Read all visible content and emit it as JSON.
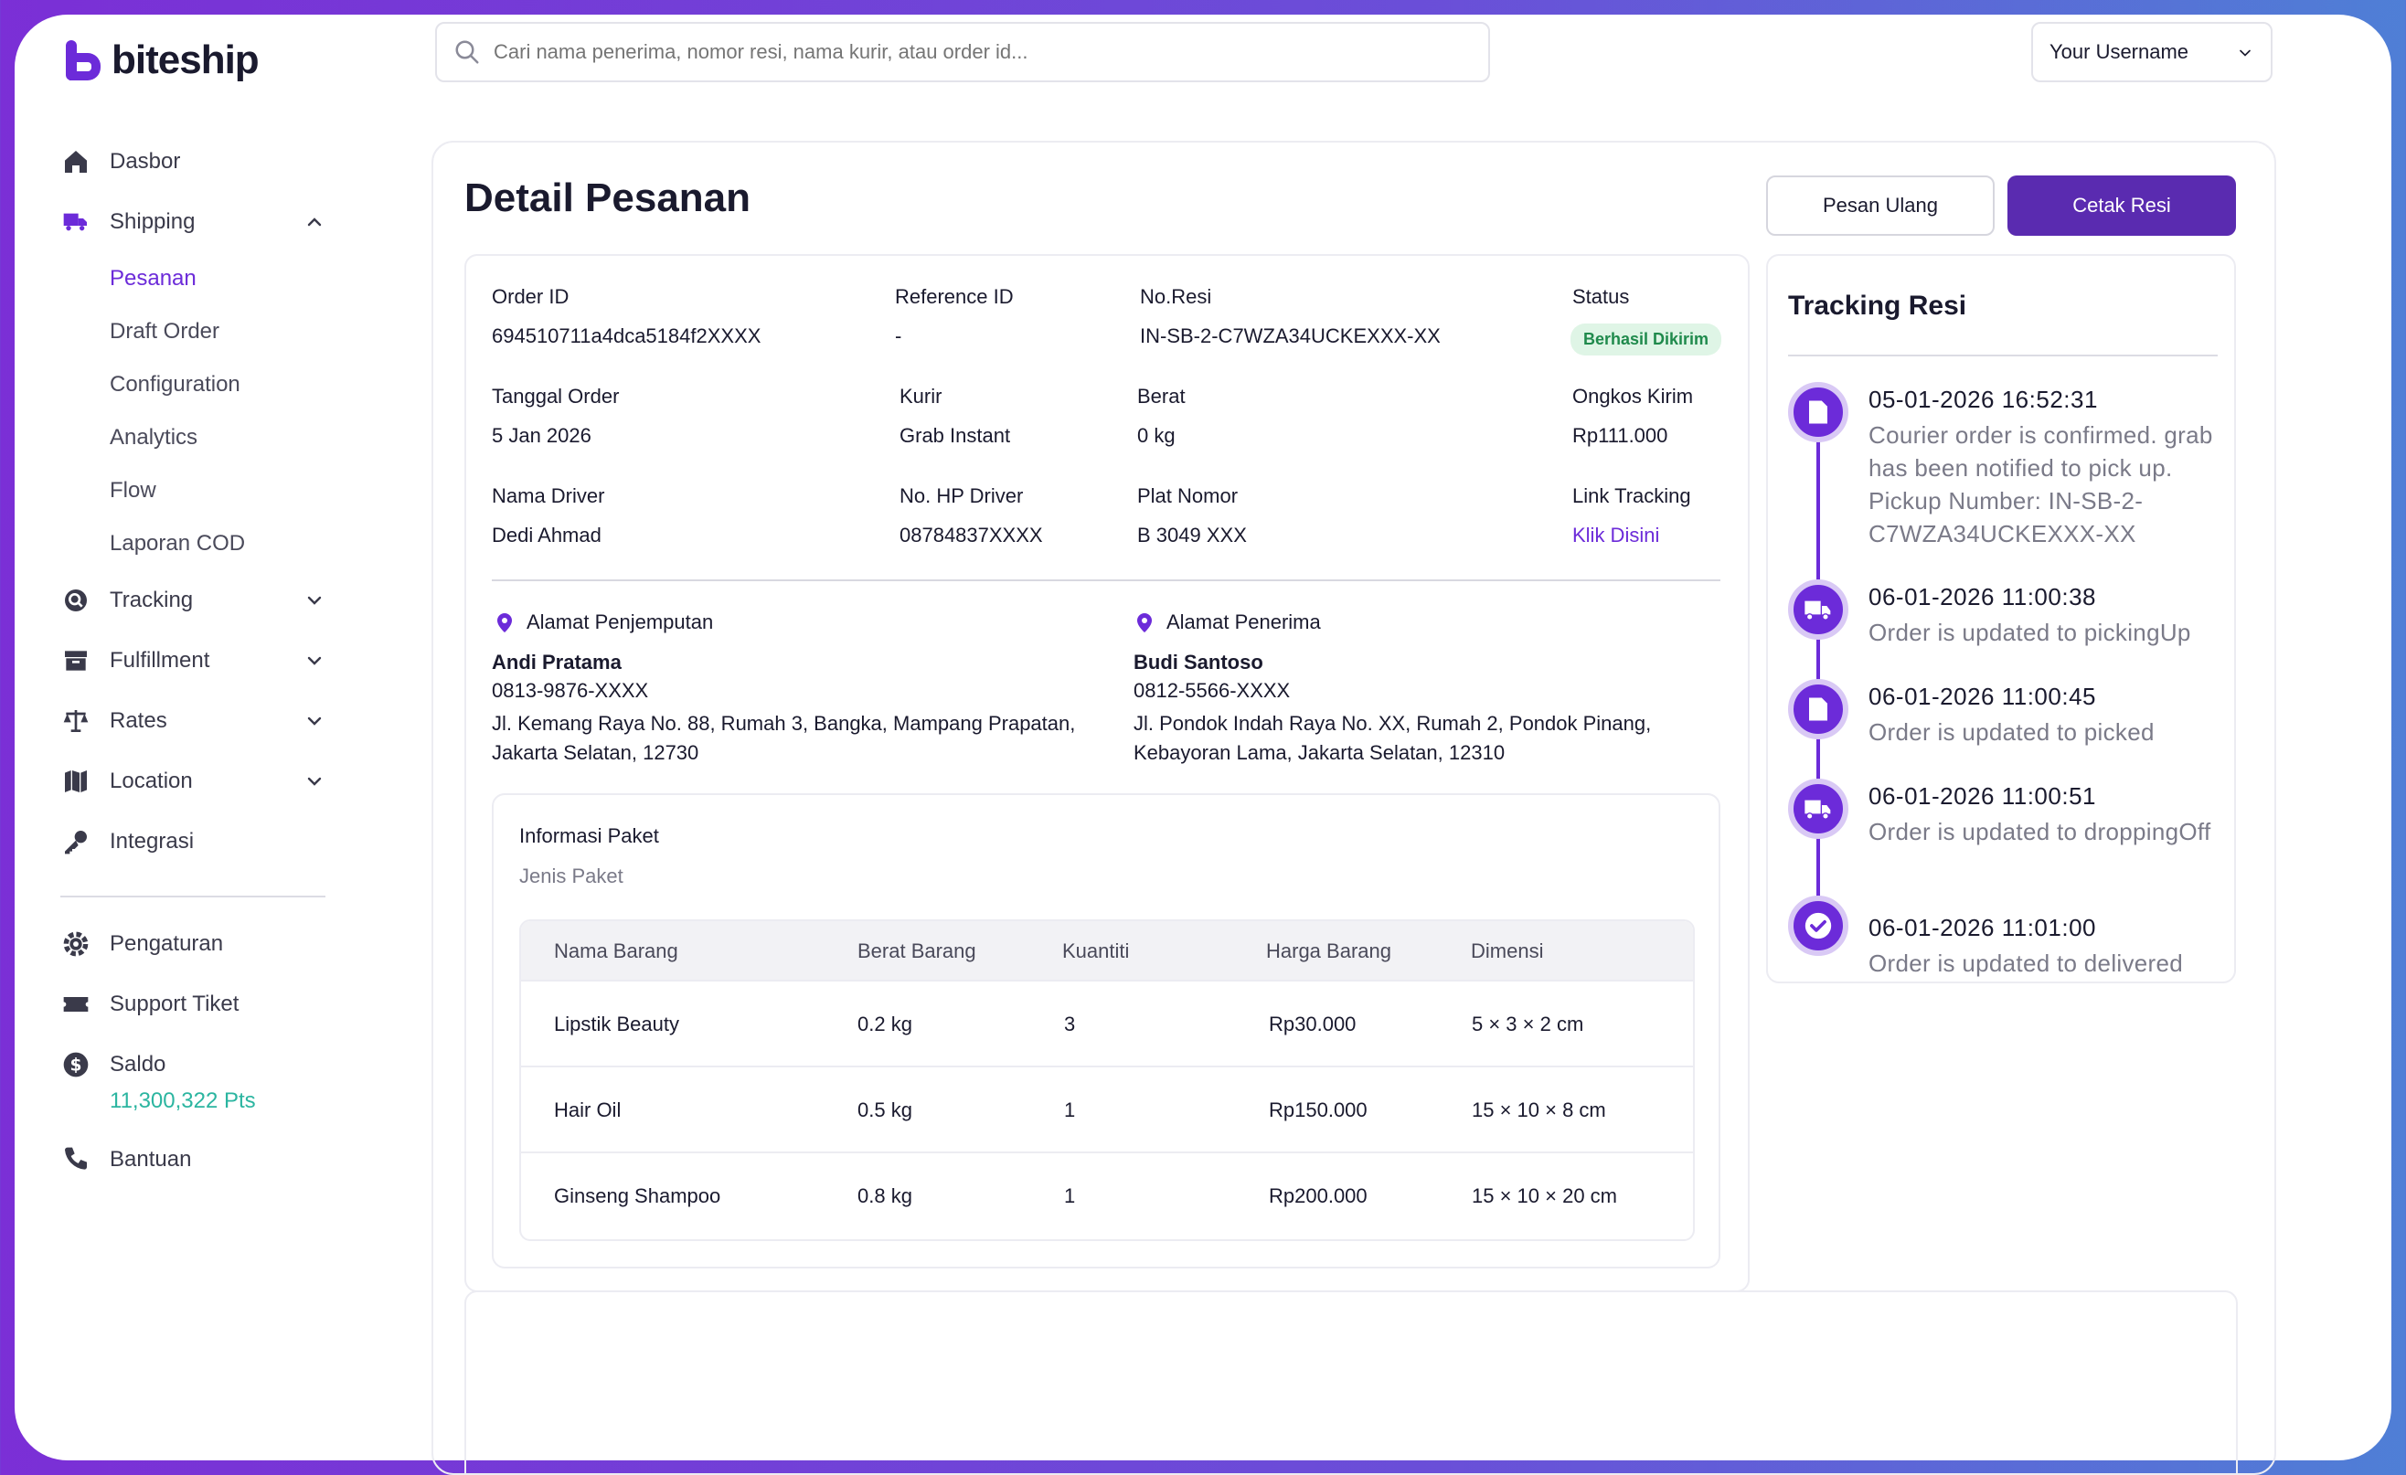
{
  "app": {
    "brand": "biteship"
  },
  "search": {
    "placeholder": "Cari nama penerima, nomor resi, nama kurir, atau order id..."
  },
  "user": {
    "name": "Your Username"
  },
  "sidebar": {
    "items": [
      {
        "label": "Dasbor"
      },
      {
        "label": "Shipping"
      },
      {
        "label": "Tracking"
      },
      {
        "label": "Fulfillment"
      },
      {
        "label": "Rates"
      },
      {
        "label": "Location"
      },
      {
        "label": "Integrasi"
      },
      {
        "label": "Pengaturan"
      },
      {
        "label": "Support Tiket"
      },
      {
        "label": "Saldo"
      },
      {
        "label": "Bantuan"
      }
    ],
    "shipping_sub": [
      {
        "label": "Pesanan"
      },
      {
        "label": "Draft Order"
      },
      {
        "label": "Configuration"
      },
      {
        "label": "Analytics"
      },
      {
        "label": "Flow"
      },
      {
        "label": "Laporan COD"
      }
    ],
    "points": "11,300,322 Pts"
  },
  "page": {
    "title": "Detail Pesanan",
    "reorder_label": "Pesan Ulang",
    "print_label": "Cetak Resi"
  },
  "order": {
    "order_id_label": "Order ID",
    "order_id": "694510711a4dca5184f2XXXX",
    "reference_label": "Reference ID",
    "reference": "-",
    "resi_label": "No.Resi",
    "resi": "IN-SB-2-C7WZA34UCKEXXX-XX",
    "status_label": "Status",
    "status": "Berhasil Dikirim",
    "date_label": "Tanggal Order",
    "date": "5 Jan 2026",
    "courier_label": "Kurir",
    "courier": "Grab Instant",
    "weight_label": "Berat",
    "weight": "0 kg",
    "cost_label": "Ongkos Kirim",
    "cost": "Rp111.000",
    "driver_label": "Nama Driver",
    "driver": "Dedi Ahmad",
    "driver_phone_label": "No. HP Driver",
    "driver_phone": "08784837XXXX",
    "plate_label": "Plat Nomor",
    "plate": "B 3049 XXX",
    "tracking_link_label": "Link Tracking",
    "tracking_link": "Klik Disini"
  },
  "pickup": {
    "title": "Alamat Penjemputan",
    "name": "Andi Pratama",
    "phone": "0813-9876-XXXX",
    "line1": "Jl. Kemang Raya No. 88, Rumah 3, Bangka, Mampang Prapatan,",
    "line2": "Jakarta Selatan, 12730"
  },
  "receiver": {
    "title": "Alamat Penerima",
    "name": "Budi Santoso",
    "phone": "0812-5566-XXXX",
    "line1": "Jl. Pondok Indah Raya No. XX, Rumah 2, Pondok Pinang,",
    "line2": "Kebayoran Lama, Jakarta Selatan, 12310"
  },
  "package": {
    "title": "Informasi Paket",
    "subtitle": "Jenis Paket",
    "columns": [
      "Nama Barang",
      "Berat Barang",
      "Kuantiti",
      "Harga Barang",
      "Dimensi"
    ],
    "rows": [
      [
        "Lipstik Beauty",
        "0.2 kg",
        "3",
        "Rp30.000",
        "5 × 3 × 2 cm"
      ],
      [
        "Hair Oil",
        "0.5 kg",
        "1",
        "Rp150.000",
        "15 × 10 × 8 cm"
      ],
      [
        "Ginseng Shampoo",
        "0.8 kg",
        "1",
        "Rp200.000",
        "15 × 10 × 20 cm"
      ]
    ]
  },
  "tracking": {
    "title": "Tracking Resi",
    "events": [
      {
        "time": "05-01-2026 16:52:31",
        "desc": "Courier order is confirmed. grab has been notified to pick up. Pickup Number: IN-SB-2-C7WZA34UCKEXXX-XX",
        "icon": "document-icon"
      },
      {
        "time": "06-01-2026 11:00:38",
        "desc": "Order is updated to pickingUp",
        "icon": "truck-icon"
      },
      {
        "time": "06-01-2026 11:00:45",
        "desc": "Order is updated to picked",
        "icon": "document-icon"
      },
      {
        "time": "06-01-2026 11:00:51",
        "desc": "Order is updated to droppingOff",
        "icon": "truck-icon"
      },
      {
        "time": "06-01-2026 11:01:00",
        "desc": "Order is updated to delivered",
        "icon": "check-circle-icon"
      }
    ]
  },
  "colors": {
    "accent": "#6c2bd9",
    "primary_button": "#5a2bb0",
    "points": "#2bb5a0",
    "status_bg": "#dff5e6",
    "status_text": "#1f8a4c"
  }
}
